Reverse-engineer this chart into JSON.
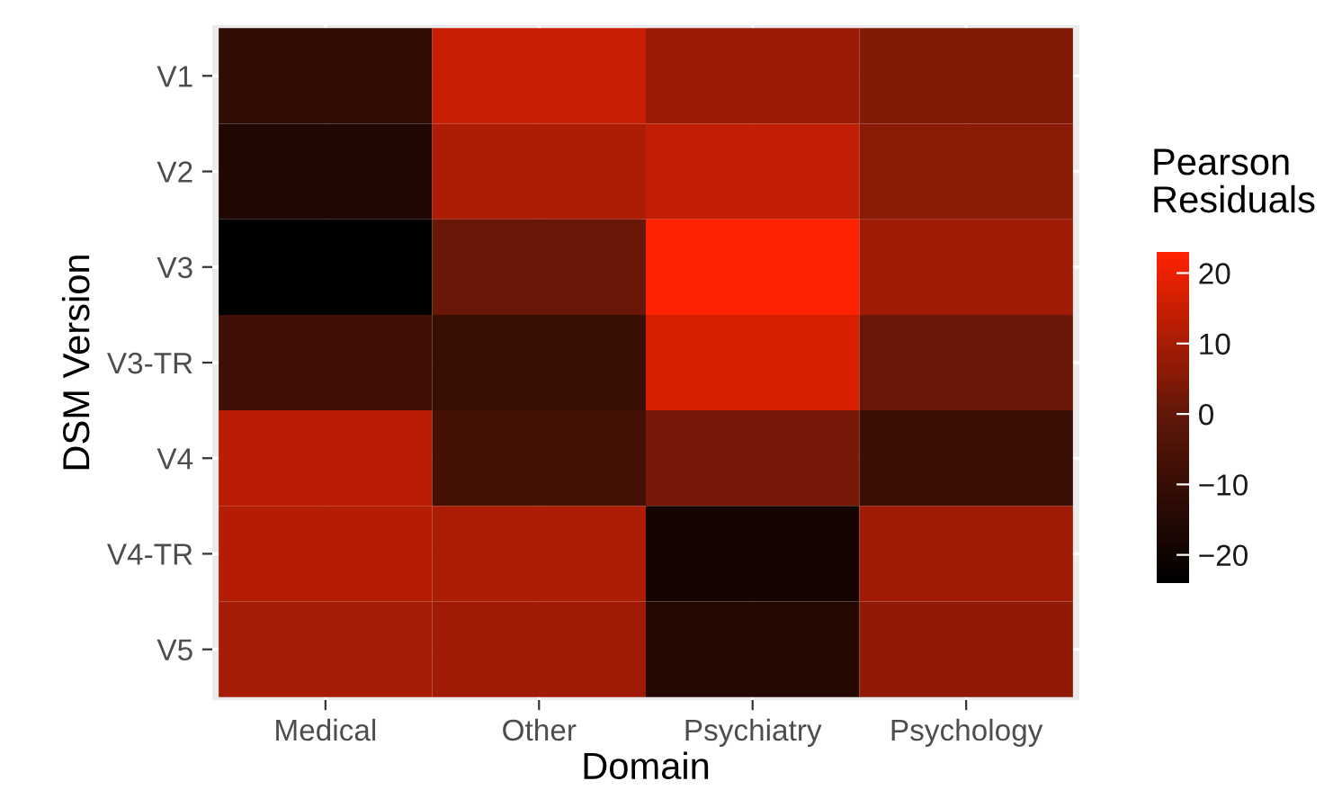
{
  "chart_data": {
    "type": "heatmap",
    "xlabel": "Domain",
    "ylabel": "DSM Version",
    "clabel": "Pearson\nResiduals",
    "categories": [
      "Medical",
      "Other",
      "Psychiatry",
      "Psychology"
    ],
    "y_categories": [
      "V1",
      "V2",
      "V3",
      "V3-TR",
      "V4",
      "V4-TR",
      "V5"
    ],
    "cells": [
      [
        -12,
        15,
        8,
        5
      ],
      [
        -16,
        11,
        14,
        6
      ],
      [
        -24,
        1,
        23,
        9
      ],
      [
        -8,
        -10,
        17,
        1
      ],
      [
        13,
        -7,
        3,
        -9
      ],
      [
        12,
        11,
        -19,
        9
      ],
      [
        10,
        9,
        -15,
        7
      ]
    ],
    "colors": [
      "#000000",
      "#5e1709",
      "#ff2200"
    ],
    "clim": [
      -24,
      23
    ],
    "cticks": [
      {
        "value": -20,
        "label": "−20"
      },
      {
        "value": -10,
        "label": "−10"
      },
      0,
      10,
      20
    ],
    "grid": true
  }
}
